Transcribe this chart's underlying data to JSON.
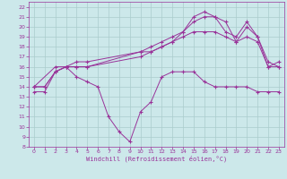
{
  "xlabel": "Windchill (Refroidissement éolien,°C)",
  "bg_color": "#cce8ea",
  "grid_color": "#aacccc",
  "line_color": "#993399",
  "xlim": [
    -0.5,
    23.5
  ],
  "ylim": [
    8,
    22.5
  ],
  "xticks": [
    0,
    1,
    2,
    3,
    4,
    5,
    6,
    7,
    8,
    9,
    10,
    11,
    12,
    13,
    14,
    15,
    16,
    17,
    18,
    19,
    20,
    21,
    22,
    23
  ],
  "yticks": [
    8,
    9,
    10,
    11,
    12,
    13,
    14,
    15,
    16,
    17,
    18,
    19,
    20,
    21,
    22
  ],
  "line1_x": [
    0,
    1,
    2,
    3,
    4,
    5,
    6,
    7,
    8,
    9,
    10,
    11,
    12,
    13,
    14,
    15,
    16,
    17,
    18,
    19,
    20,
    21,
    22,
    23
  ],
  "line1_y": [
    13.5,
    13.5,
    15.5,
    16.0,
    15.0,
    14.5,
    14.0,
    11.0,
    9.5,
    8.5,
    11.5,
    12.5,
    15.0,
    15.5,
    15.5,
    15.5,
    14.5,
    14.0,
    14.0,
    14.0,
    14.0,
    13.5,
    13.5,
    13.5
  ],
  "line2_x": [
    0,
    1,
    2,
    3,
    4,
    5,
    10,
    11,
    12,
    13,
    14,
    15,
    16,
    17,
    18,
    19,
    20,
    21,
    22,
    23
  ],
  "line2_y": [
    14.0,
    14.0,
    15.5,
    16.0,
    16.0,
    16.0,
    17.0,
    17.5,
    18.0,
    18.5,
    19.5,
    21.0,
    21.5,
    21.0,
    20.5,
    18.5,
    19.0,
    18.5,
    16.0,
    16.0
  ],
  "line3_x": [
    0,
    2,
    3,
    4,
    5,
    10,
    11,
    12,
    13,
    14,
    15,
    16,
    17,
    18,
    19,
    20,
    21,
    22,
    23
  ],
  "line3_y": [
    14.0,
    16.0,
    16.0,
    16.5,
    16.5,
    17.5,
    18.0,
    18.5,
    19.0,
    19.5,
    20.5,
    21.0,
    21.0,
    19.5,
    19.0,
    20.5,
    19.0,
    16.0,
    16.5
  ],
  "line4_x": [
    0,
    1,
    2,
    3,
    4,
    5,
    10,
    11,
    12,
    13,
    14,
    15,
    16,
    17,
    18,
    19,
    20,
    21,
    22,
    23
  ],
  "line4_y": [
    14.0,
    14.0,
    15.5,
    16.0,
    16.0,
    16.0,
    17.5,
    17.5,
    18.0,
    18.5,
    19.0,
    19.5,
    19.5,
    19.5,
    19.0,
    18.5,
    20.0,
    19.0,
    16.5,
    16.0
  ]
}
